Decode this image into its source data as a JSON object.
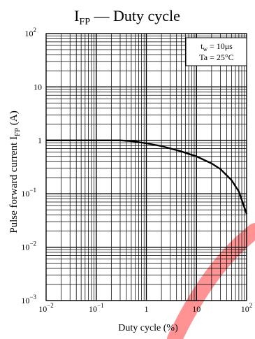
{
  "chart_data": {
    "type": "line",
    "title_main": "I",
    "title_sub": "FP",
    "title_rest": " — Duty cycle",
    "xlabel": "Duty cycle   (%)",
    "ylabel_main": "Pulse forward current   I",
    "ylabel_sub": "FP",
    "ylabel_unit": "  (A)",
    "xscale": "log",
    "yscale": "log",
    "xlim": [
      0.01,
      100
    ],
    "ylim": [
      0.001,
      100
    ],
    "grid": true,
    "x_ticks": [
      {
        "value": 0.01,
        "base": "10",
        "exp": "−2"
      },
      {
        "value": 0.1,
        "base": "10",
        "exp": "−1"
      },
      {
        "value": 1,
        "base": "1",
        "exp": ""
      },
      {
        "value": 10,
        "base": "10",
        "exp": ""
      },
      {
        "value": 100,
        "base": "10",
        "exp": "2"
      }
    ],
    "y_ticks": [
      {
        "value": 100,
        "base": "10",
        "exp": "2"
      },
      {
        "value": 10,
        "base": "10",
        "exp": ""
      },
      {
        "value": 1,
        "base": "1",
        "exp": ""
      },
      {
        "value": 0.1,
        "base": "10",
        "exp": "−1"
      },
      {
        "value": 0.01,
        "base": "10",
        "exp": "−2"
      },
      {
        "value": 0.001,
        "base": "10",
        "exp": "−3"
      }
    ],
    "conditions": [
      {
        "main": "t",
        "sub": "w",
        "rest": " = 10μs"
      },
      {
        "main": "Ta = 25°C",
        "sub": "",
        "rest": ""
      }
    ],
    "series": [
      {
        "x": [
          0.01,
          0.05,
          0.1,
          0.2,
          0.3,
          0.5,
          1,
          2,
          5,
          10,
          20,
          30,
          50,
          70,
          100
        ],
        "y": [
          1.0,
          1.0,
          1.0,
          1.0,
          1.0,
          0.97,
          0.88,
          0.78,
          0.62,
          0.5,
          0.37,
          0.29,
          0.18,
          0.11,
          0.042
        ]
      }
    ],
    "colors": {
      "line": "#000000",
      "grid": "#000000",
      "watermark": "#ff3b3b"
    }
  }
}
